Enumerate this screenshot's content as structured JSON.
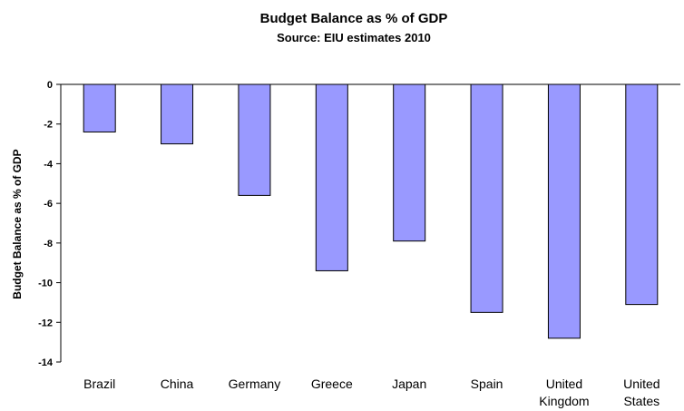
{
  "chart_data": {
    "type": "bar",
    "title": "Budget Balance as % of GDP",
    "subtitle": "Source: EIU estimates 2010",
    "ylabel": "Budget Balance as % of GDP",
    "xlabel": "",
    "categories": [
      "Brazil",
      "China",
      "Germany",
      "Greece",
      "Japan",
      "Spain",
      "United Kingdom",
      "United States"
    ],
    "category_lines": [
      [
        "Brazil"
      ],
      [
        "China"
      ],
      [
        "Germany"
      ],
      [
        "Greece"
      ],
      [
        "Japan"
      ],
      [
        "Spain"
      ],
      [
        "United",
        "Kingdom"
      ],
      [
        "United",
        "States"
      ]
    ],
    "values": [
      -2.4,
      -3.0,
      -5.6,
      -9.4,
      -7.9,
      -11.5,
      -12.8,
      -11.1
    ],
    "ylim": [
      -14,
      0
    ],
    "yticks": [
      0,
      -2,
      -4,
      -6,
      -8,
      -10,
      -12,
      -14
    ],
    "grid": false,
    "legend": "none",
    "colors": {
      "bar_fill": "#9999ff",
      "bar_stroke": "#000000",
      "axis": "#000000"
    }
  }
}
